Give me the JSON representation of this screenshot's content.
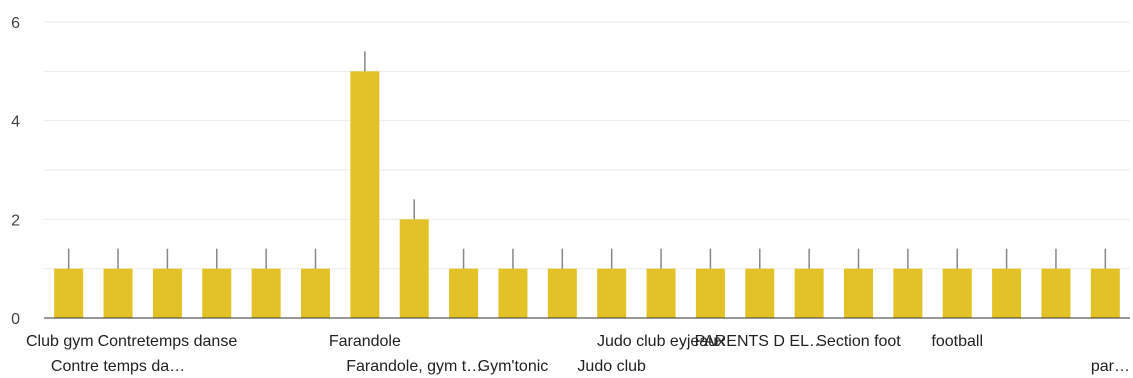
{
  "chart_data": {
    "type": "bar",
    "categories": [
      "Club gym",
      "Contre temps da…",
      "Contretemps danse",
      "",
      "",
      "",
      "Farandole",
      "Farandole, gym t…",
      "",
      "Gym'tonic",
      "",
      "Judo club",
      "Judo club eyjeaux",
      "",
      "PARENTS D EL…",
      "",
      "Section foot",
      "",
      "football",
      "",
      "",
      "par…"
    ],
    "series": [
      {
        "values": [
          1,
          1,
          1,
          1,
          1,
          1,
          5,
          2,
          1,
          1,
          1,
          1,
          1,
          1,
          1,
          1,
          1,
          1,
          1,
          1,
          1,
          1
        ]
      }
    ],
    "ylim": [
      0,
      6
    ],
    "yticks": [
      0,
      2,
      4,
      6
    ],
    "grid": true,
    "error_bars": true,
    "colors": {
      "bar": "#E2C227",
      "error": "#888888",
      "grid": "#EBEBEB",
      "axis": "#333333"
    }
  }
}
